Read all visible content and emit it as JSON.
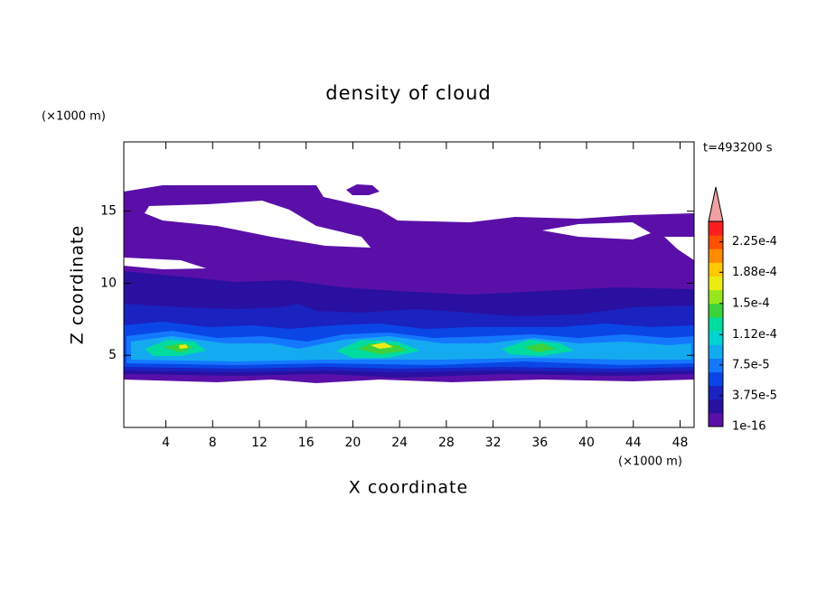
{
  "chart_data": {
    "type": "contour",
    "title": "density of cloud",
    "annotation": "t=493200 s",
    "x_label": "X coordinate",
    "y_label": "Z coordinate",
    "x_unit": "(×1000 m)",
    "y_unit": "(×1000 m)",
    "xlim": [
      0.4,
      49.2
    ],
    "ylim": [
      0,
      19.8
    ],
    "xticks": [
      4,
      8,
      12,
      16,
      20,
      24,
      28,
      32,
      36,
      40,
      44,
      48
    ],
    "yticks": [
      5,
      10,
      15
    ],
    "clim": [
      1e-16,
      0.00025
    ],
    "cticks": [
      1e-16,
      {
        "value": 3.75e-05,
        "label": "3.75e-5"
      },
      {
        "value": 7.5e-05,
        "label": "7.5e-5"
      },
      {
        "value": 0.000112,
        "label": "1.12e-4"
      },
      {
        "value": 0.00015,
        "label": "1.5e-4"
      },
      {
        "value": 0.000188,
        "label": "1.88e-4"
      },
      {
        "value": 0.000225,
        "label": "2.25e-4"
      }
    ],
    "colors": [
      "#5a10a8",
      "#2a10a0",
      "#1a22c0",
      "#0a46e6",
      "#1478ff",
      "#14aaf0",
      "#00d2d2",
      "#00dca0",
      "#3cd23c",
      "#96e61e",
      "#ecec14",
      "#ffc800",
      "#ff8c00",
      "#ff5000",
      "#ff1e1e"
    ],
    "extend_color": "#f0a0a0"
  }
}
